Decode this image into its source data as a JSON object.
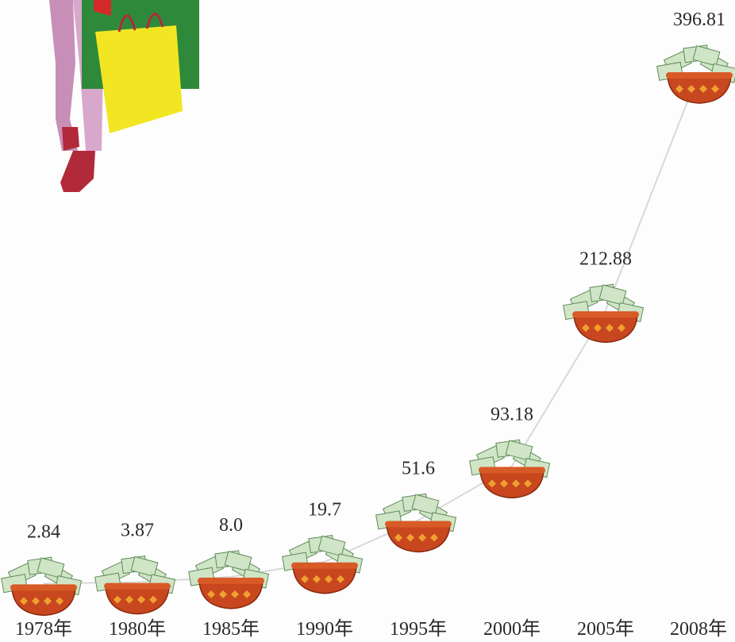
{
  "chart_data": {
    "type": "line",
    "categories": [
      "1978年",
      "1980年",
      "1985年",
      "1990年",
      "1995年",
      "2000年",
      "2005年",
      "2008年"
    ],
    "values": [
      2.84,
      3.87,
      8,
      19.7,
      51.6,
      93.18,
      212.88,
      396.81
    ],
    "value_labels": [
      "2.84",
      "3.87",
      "8.0",
      "19.7",
      "51.6",
      "93.18",
      "212.88",
      "396.81"
    ],
    "color": "#d8d8d8"
  }
}
